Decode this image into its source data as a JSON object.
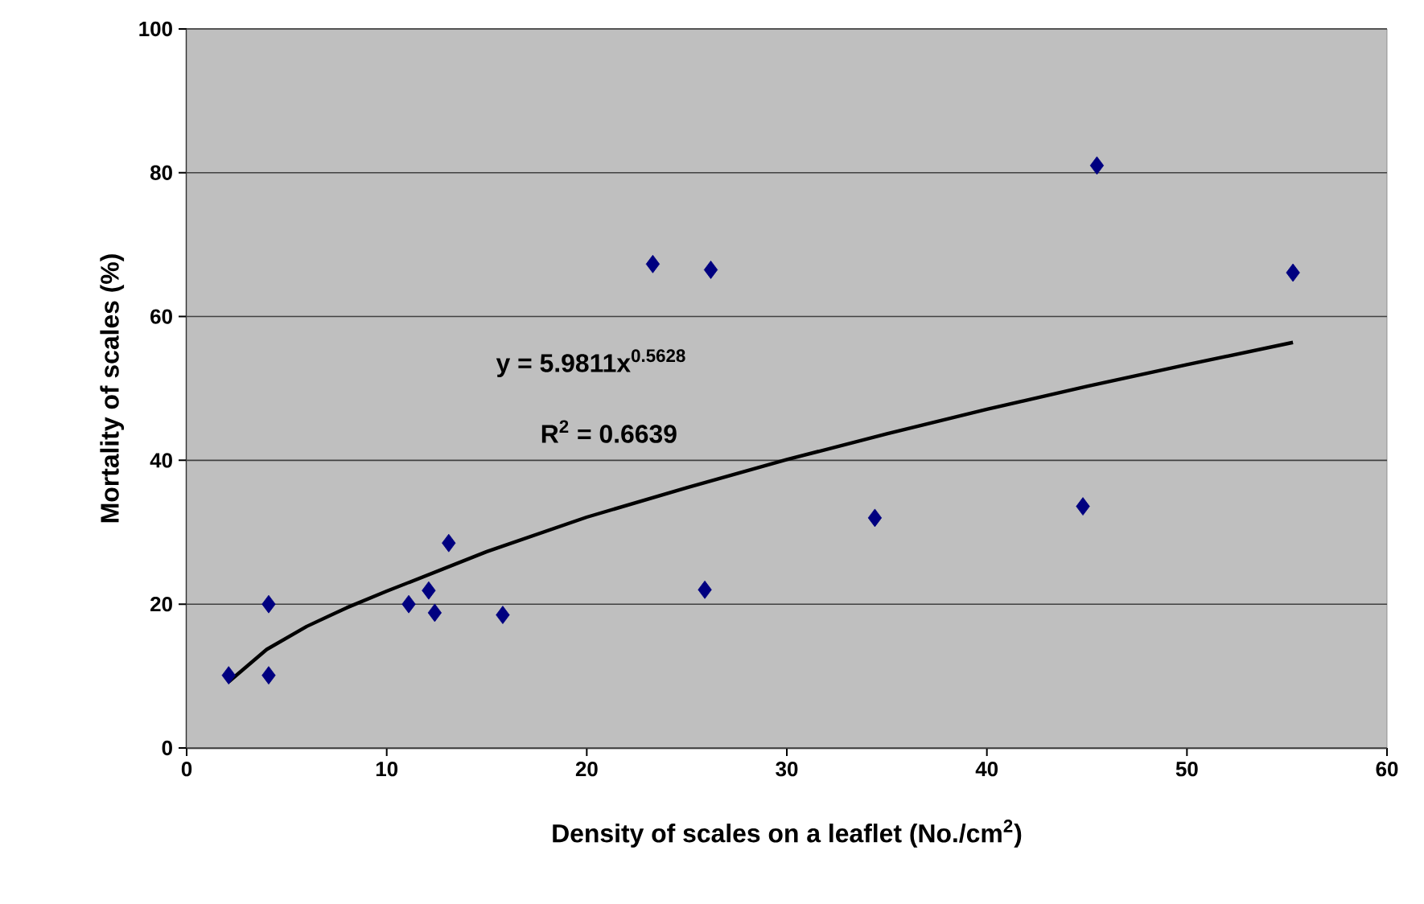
{
  "chart_data": {
    "type": "scatter",
    "xlabel": "Density of scales on a leaflet (No./cm$^{2}$)",
    "ylabel": "Mortality of scales (%)",
    "xlim": [
      0,
      60
    ],
    "xticks": [
      0,
      10,
      20,
      30,
      40,
      50,
      60
    ],
    "ylim": [
      0,
      100
    ],
    "yticks": [
      0,
      20,
      40,
      60,
      80,
      100
    ],
    "grid": "y",
    "annotations": [
      "y = 5.9811x$^{0.5628}$",
      "R$^{2}$ = 0.6639"
    ],
    "series": [
      {
        "color": "#000080",
        "marker": "diamond",
        "x": [
          2.1,
          4.1,
          4.1,
          11.1,
          12.1,
          12.4,
          13.1,
          15.8,
          23.3,
          25.9,
          26.2,
          34.4,
          44.8,
          45.5,
          55.3
        ],
        "values": [
          10.1,
          20,
          10.1,
          20,
          21.9,
          18.8,
          28.5,
          18.5,
          67.3,
          22,
          66.5,
          32,
          33.6,
          81,
          66.1
        ]
      },
      {
        "type": "line",
        "color": "#000000",
        "marker": "none",
        "line_style": "solid",
        "x": [
          2.1,
          4,
          6,
          8,
          10,
          15,
          20,
          25,
          30,
          35,
          40,
          45,
          50,
          55.3
        ],
        "values": [
          9.2,
          13.7,
          16.9,
          19.5,
          21.8,
          27.3,
          32.1,
          36.2,
          40.1,
          43.7,
          47.1,
          50.3,
          53.3,
          56.4
        ]
      }
    ]
  }
}
